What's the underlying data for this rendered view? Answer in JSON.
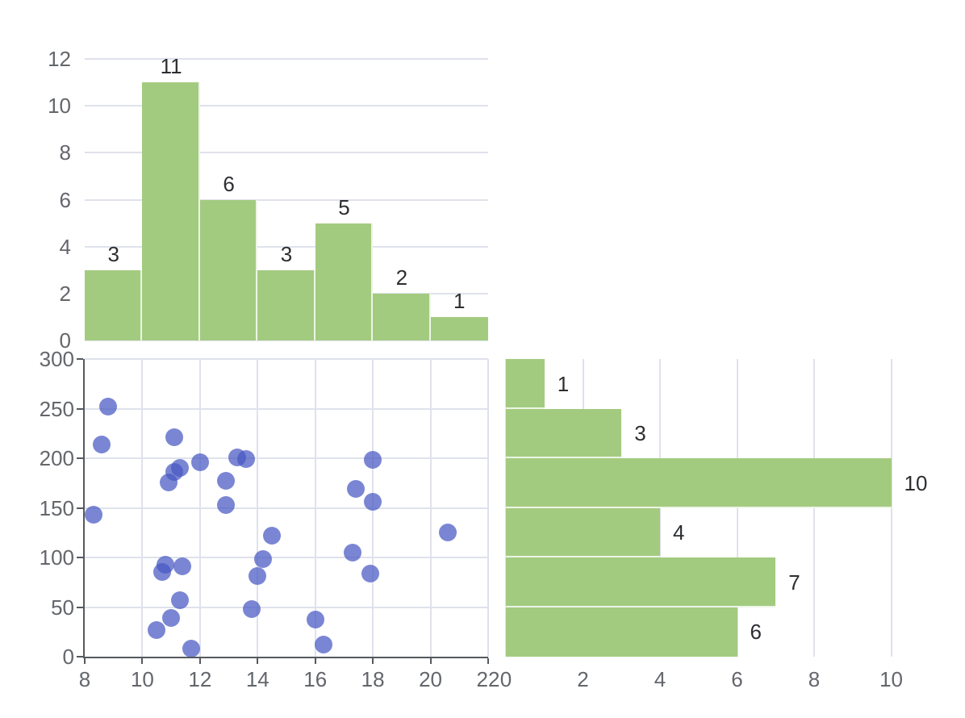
{
  "figure": {
    "description": "Joint distribution plot: central scatter with top and right marginal histograms",
    "background": "#ffffff"
  },
  "style": {
    "bar_color": "#a3cb80",
    "bar_separator": "rgba(255,255,255,0.8)",
    "point_color": "#4658c2",
    "point_opacity": 0.72,
    "gridline_color": "#dfe2ec",
    "axis_color": "#56595e",
    "tick_label_color": "#63666b",
    "annotation_color": "#2c2e31"
  },
  "chart_data": [
    {
      "id": "top_histogram",
      "type": "bar",
      "orientation": "vertical",
      "categories": [
        "8-10",
        "10-12",
        "12-14",
        "14-16",
        "16-18",
        "18-20",
        "20-22"
      ],
      "values": [
        3,
        11,
        6,
        3,
        5,
        2,
        1
      ],
      "bar_labels": [
        "3",
        "11",
        "6",
        "3",
        "5",
        "2",
        "1"
      ],
      "xlim": [
        8,
        22
      ],
      "ylim": [
        0,
        12
      ],
      "yticks": [
        0,
        2,
        4,
        6,
        8,
        10,
        12
      ],
      "grid": true,
      "legend": false,
      "title": ""
    },
    {
      "id": "scatter",
      "type": "scatter",
      "points": [
        [
          8.3,
          143
        ],
        [
          8.6,
          214
        ],
        [
          8.8,
          252
        ],
        [
          10.5,
          27
        ],
        [
          10.7,
          85
        ],
        [
          10.8,
          93
        ],
        [
          10.9,
          176
        ],
        [
          11.0,
          39
        ],
        [
          11.1,
          186
        ],
        [
          11.1,
          221
        ],
        [
          11.3,
          57
        ],
        [
          11.3,
          190
        ],
        [
          11.4,
          91
        ],
        [
          11.7,
          8
        ],
        [
          12.0,
          196
        ],
        [
          12.9,
          153
        ],
        [
          12.9,
          177
        ],
        [
          13.3,
          201
        ],
        [
          13.6,
          199
        ],
        [
          13.8,
          48
        ],
        [
          14.0,
          81
        ],
        [
          14.2,
          98
        ],
        [
          14.5,
          122
        ],
        [
          16.0,
          37
        ],
        [
          16.3,
          12
        ],
        [
          17.3,
          105
        ],
        [
          17.4,
          169
        ],
        [
          17.9,
          84
        ],
        [
          18.0,
          156
        ],
        [
          18.0,
          198
        ],
        [
          20.6,
          125
        ]
      ],
      "xlim": [
        8,
        22
      ],
      "ylim": [
        0,
        300
      ],
      "xticks": [
        8,
        10,
        12,
        14,
        16,
        18,
        20,
        22
      ],
      "yticks": [
        0,
        50,
        100,
        150,
        200,
        250,
        300
      ],
      "grid": true,
      "legend": false,
      "title": ""
    },
    {
      "id": "right_histogram",
      "type": "bar",
      "orientation": "horizontal",
      "categories": [
        "250-300",
        "200-250",
        "150-200",
        "100-150",
        "50-100",
        "0-50"
      ],
      "values": [
        1,
        3,
        10,
        4,
        7,
        6
      ],
      "bar_labels": [
        "1",
        "3",
        "10",
        "4",
        "7",
        "6"
      ],
      "xlim": [
        0,
        11.58
      ],
      "ylim": [
        0,
        300
      ],
      "xticks": [
        0,
        2,
        4,
        6,
        8,
        10
      ],
      "grid": true,
      "legend": false,
      "title": ""
    }
  ]
}
